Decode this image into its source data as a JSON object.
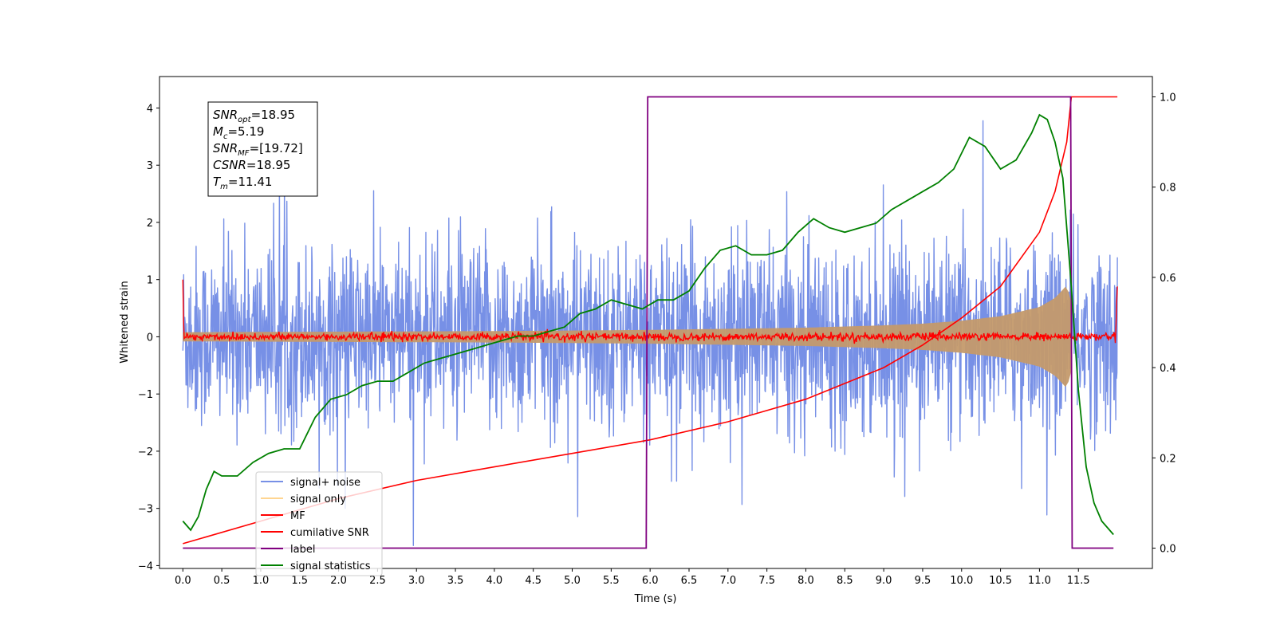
{
  "chart_data": {
    "type": "line",
    "xlabel": "Time (s)",
    "ylabel": "Whitened strain",
    "xlim": [
      -0.3,
      12.45
    ],
    "ylim": [
      -4.05,
      4.55
    ],
    "y2lim": [
      -0.045,
      1.045
    ],
    "x_ticks": [
      "0.0",
      "0.5",
      "1.0",
      "1.5",
      "2.0",
      "2.5",
      "3.0",
      "3.5",
      "4.0",
      "4.5",
      "5.0",
      "5.5",
      "6.0",
      "6.5",
      "7.0",
      "7.5",
      "8.0",
      "8.5",
      "9.0",
      "9.5",
      "10.0",
      "10.5",
      "11.0",
      "11.5"
    ],
    "y_ticks": [
      -4,
      -3,
      -2,
      -1,
      0,
      1,
      2,
      3,
      4
    ],
    "y_tick_labels": [
      "−4",
      "−3",
      "−2",
      "−1",
      "0",
      "1",
      "2",
      "3",
      "4"
    ],
    "y2_ticks": [
      0.0,
      0.2,
      0.4,
      0.6,
      0.8,
      1.0
    ],
    "y2_tick_labels": [
      "0.0",
      "0.2",
      "0.4",
      "0.6",
      "0.8",
      "1.0"
    ],
    "legend_position": "lower-left",
    "info_box": {
      "lines": [
        {
          "main": "SNR",
          "sub": "opt",
          "value": "=18.95"
        },
        {
          "main": "M",
          "sub": "c",
          "value": "=5.19"
        },
        {
          "main": "SNR",
          "sub": "MF",
          "value": "=[19.72]"
        },
        {
          "main": "CSNR",
          "sub": "",
          "value": "=18.95"
        },
        {
          "main": "T",
          "sub": "m",
          "value": "=11.41"
        }
      ]
    },
    "series": [
      {
        "name": "signal+ noise",
        "color": "#7790e6",
        "axis": "left",
        "style": "noise band approx. ±1.6 with spikes to ±4.2",
        "x_range": [
          0,
          12.0
        ]
      },
      {
        "name": "signal only",
        "color": "#ffd591",
        "axis": "left",
        "style": "chirp envelope growing toward merger",
        "envelope": {
          "x": [
            0,
            2,
            4,
            6,
            7,
            8,
            9,
            9.5,
            10,
            10.5,
            11,
            11.2,
            11.35,
            11.41
          ],
          "amp": [
            0.08,
            0.09,
            0.1,
            0.12,
            0.14,
            0.16,
            0.2,
            0.23,
            0.28,
            0.36,
            0.52,
            0.68,
            0.9,
            0.6
          ]
        }
      },
      {
        "name": "MF",
        "color": "#ff0000",
        "axis": "left",
        "style": "flat ~0 with small noise, spikes at both ends",
        "x_range": [
          0,
          12.0
        ]
      },
      {
        "name": "cumilative SNR",
        "color": "#ff0000",
        "axis": "right",
        "x": [
          0,
          1,
          2,
          3,
          4,
          5,
          6,
          7,
          8,
          9,
          9.5,
          10,
          10.5,
          11,
          11.2,
          11.35,
          11.41,
          12.0
        ],
        "values": [
          0.01,
          0.06,
          0.11,
          0.15,
          0.18,
          0.21,
          0.24,
          0.28,
          0.33,
          0.4,
          0.45,
          0.51,
          0.58,
          0.7,
          0.79,
          0.9,
          1.0,
          1.0
        ]
      },
      {
        "name": "label",
        "color": "#800080",
        "axis": "right",
        "x": [
          0,
          5.95,
          5.97,
          11.4,
          11.42,
          11.95
        ],
        "values": [
          0,
          0,
          1,
          1,
          0,
          0
        ]
      },
      {
        "name": "signal statistics",
        "color": "#008000",
        "axis": "right",
        "x": [
          0,
          0.1,
          0.2,
          0.3,
          0.4,
          0.5,
          0.7,
          0.9,
          1.1,
          1.3,
          1.5,
          1.7,
          1.9,
          2.1,
          2.3,
          2.5,
          2.7,
          2.9,
          3.1,
          3.3,
          3.5,
          3.7,
          3.9,
          4.1,
          4.3,
          4.5,
          4.7,
          4.9,
          5.1,
          5.3,
          5.5,
          5.7,
          5.9,
          6.1,
          6.3,
          6.5,
          6.7,
          6.9,
          7.1,
          7.3,
          7.5,
          7.7,
          7.9,
          8.1,
          8.3,
          8.5,
          8.7,
          8.9,
          9.1,
          9.3,
          9.5,
          9.7,
          9.9,
          10.1,
          10.3,
          10.5,
          10.7,
          10.9,
          11.0,
          11.1,
          11.2,
          11.3,
          11.4,
          11.5,
          11.6,
          11.7,
          11.8,
          11.9,
          11.95
        ],
        "values": [
          0.06,
          0.04,
          0.07,
          0.13,
          0.17,
          0.16,
          0.16,
          0.19,
          0.21,
          0.22,
          0.22,
          0.29,
          0.33,
          0.34,
          0.36,
          0.37,
          0.37,
          0.39,
          0.41,
          0.42,
          0.43,
          0.44,
          0.45,
          0.46,
          0.47,
          0.47,
          0.48,
          0.49,
          0.52,
          0.53,
          0.55,
          0.54,
          0.53,
          0.55,
          0.55,
          0.57,
          0.62,
          0.66,
          0.67,
          0.65,
          0.65,
          0.66,
          0.7,
          0.73,
          0.71,
          0.7,
          0.71,
          0.72,
          0.75,
          0.77,
          0.79,
          0.81,
          0.84,
          0.91,
          0.89,
          0.84,
          0.86,
          0.92,
          0.96,
          0.95,
          0.9,
          0.82,
          0.6,
          0.35,
          0.18,
          0.1,
          0.06,
          0.04,
          0.03
        ]
      }
    ]
  }
}
